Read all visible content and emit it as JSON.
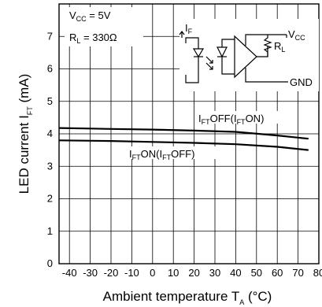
{
  "chart_data": {
    "type": "line",
    "xlabel_main": "Ambient temperature T",
    "xlabel_sub": "A",
    "xlabel_unit": " (°C)",
    "ylabel_main": "LED current I",
    "ylabel_sub": "FT",
    "ylabel_unit": "  (mA)",
    "xlim": [
      -45,
      80
    ],
    "ylim": [
      0,
      8
    ],
    "x_ticks": [
      "-40",
      "-30",
      "-20",
      "-10",
      "0",
      "10",
      "20",
      "30",
      "40",
      "50",
      "60",
      "70",
      "80"
    ],
    "y_ticks": [
      "0",
      "1",
      "2",
      "3",
      "4",
      "5",
      "6",
      "7"
    ],
    "grid": true,
    "series": [
      {
        "x": [
          -45,
          -20,
          0,
          20,
          40,
          60,
          75
        ],
        "y": [
          4.18,
          4.15,
          4.13,
          4.1,
          4.06,
          3.95,
          3.85
        ]
      },
      {
        "x": [
          -45,
          -20,
          0,
          20,
          40,
          60,
          75
        ],
        "y": [
          3.8,
          3.78,
          3.75,
          3.72,
          3.68,
          3.6,
          3.5
        ]
      }
    ],
    "annotations": {
      "upper": {
        "parts": [
          "I",
          "FT",
          "OFF(I",
          "FT",
          "ON)"
        ]
      },
      "lower": {
        "parts": [
          "I",
          "FT",
          "ON(I",
          "FT",
          "OFF)"
        ]
      }
    },
    "conditions": {
      "vcc": {
        "parts": [
          "V",
          "CC",
          " = 5V"
        ]
      },
      "rl": {
        "parts": [
          "R",
          "L",
          " = 330Ω"
        ]
      }
    },
    "circuit_labels": {
      "if_label": {
        "parts": [
          "I",
          "F"
        ]
      },
      "vcc_label": {
        "parts": [
          "V",
          "CC"
        ]
      },
      "rl_label": {
        "parts": [
          "R",
          "L"
        ]
      },
      "gnd_label": "GND"
    }
  }
}
